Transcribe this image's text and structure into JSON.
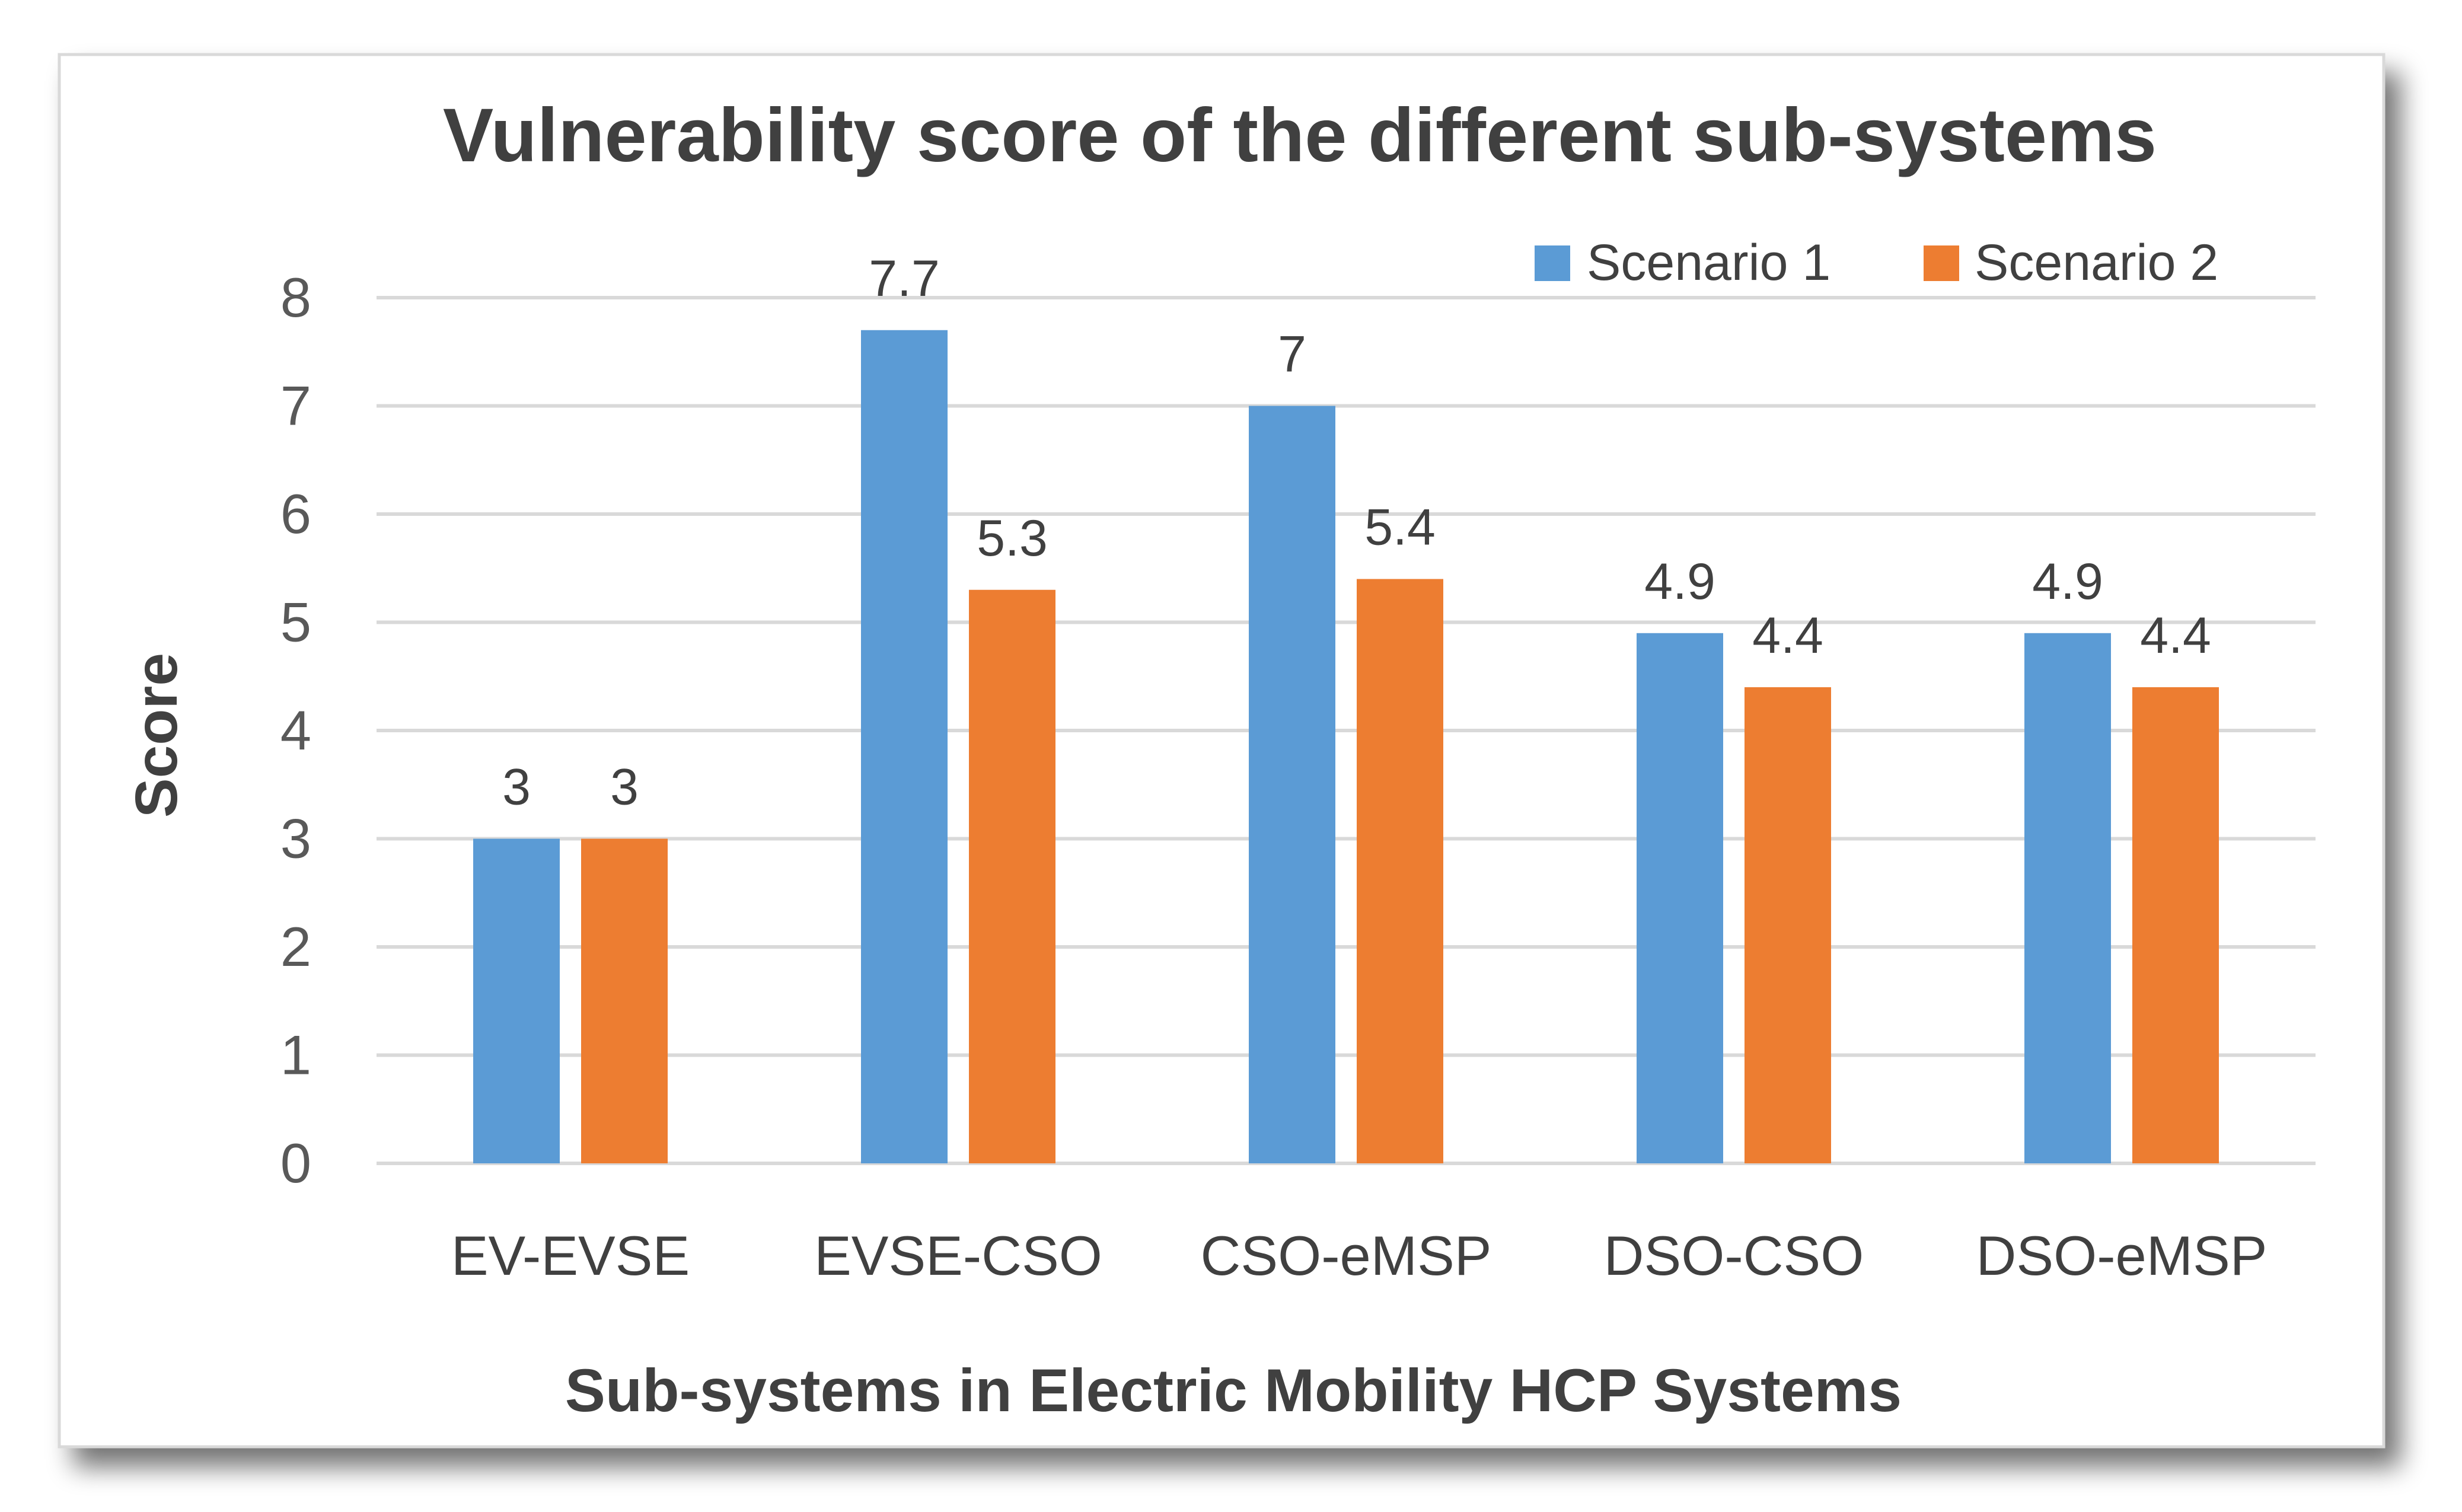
{
  "chart_data": {
    "type": "bar",
    "title": "Vulnerability score of the different sub-systems",
    "xlabel": "Sub-systems in Electric Mobility HCP Systems",
    "ylabel": "Score",
    "ylim": [
      0,
      8
    ],
    "yticks": [
      "0",
      "1",
      "2",
      "3",
      "4",
      "5",
      "6",
      "7",
      "8"
    ],
    "grid": true,
    "legend_position": "top-right",
    "categories": [
      "EV-EVSE",
      "EVSE-CSO",
      "CSO-eMSP",
      "DSO-CSO",
      "DSO-eMSP"
    ],
    "series": [
      {
        "name": "Scenario 1",
        "color": "#5B9BD5",
        "values": [
          3,
          7.7,
          7,
          4.9,
          4.9
        ],
        "labels": [
          "3",
          "7.7",
          "7",
          "4.9",
          "4.9"
        ]
      },
      {
        "name": "Scenario 2",
        "color": "#ED7D31",
        "values": [
          3,
          5.3,
          5.4,
          4.4,
          4.4
        ],
        "labels": [
          "3",
          "5.3",
          "5.4",
          "4.4",
          "4.4"
        ]
      }
    ]
  }
}
